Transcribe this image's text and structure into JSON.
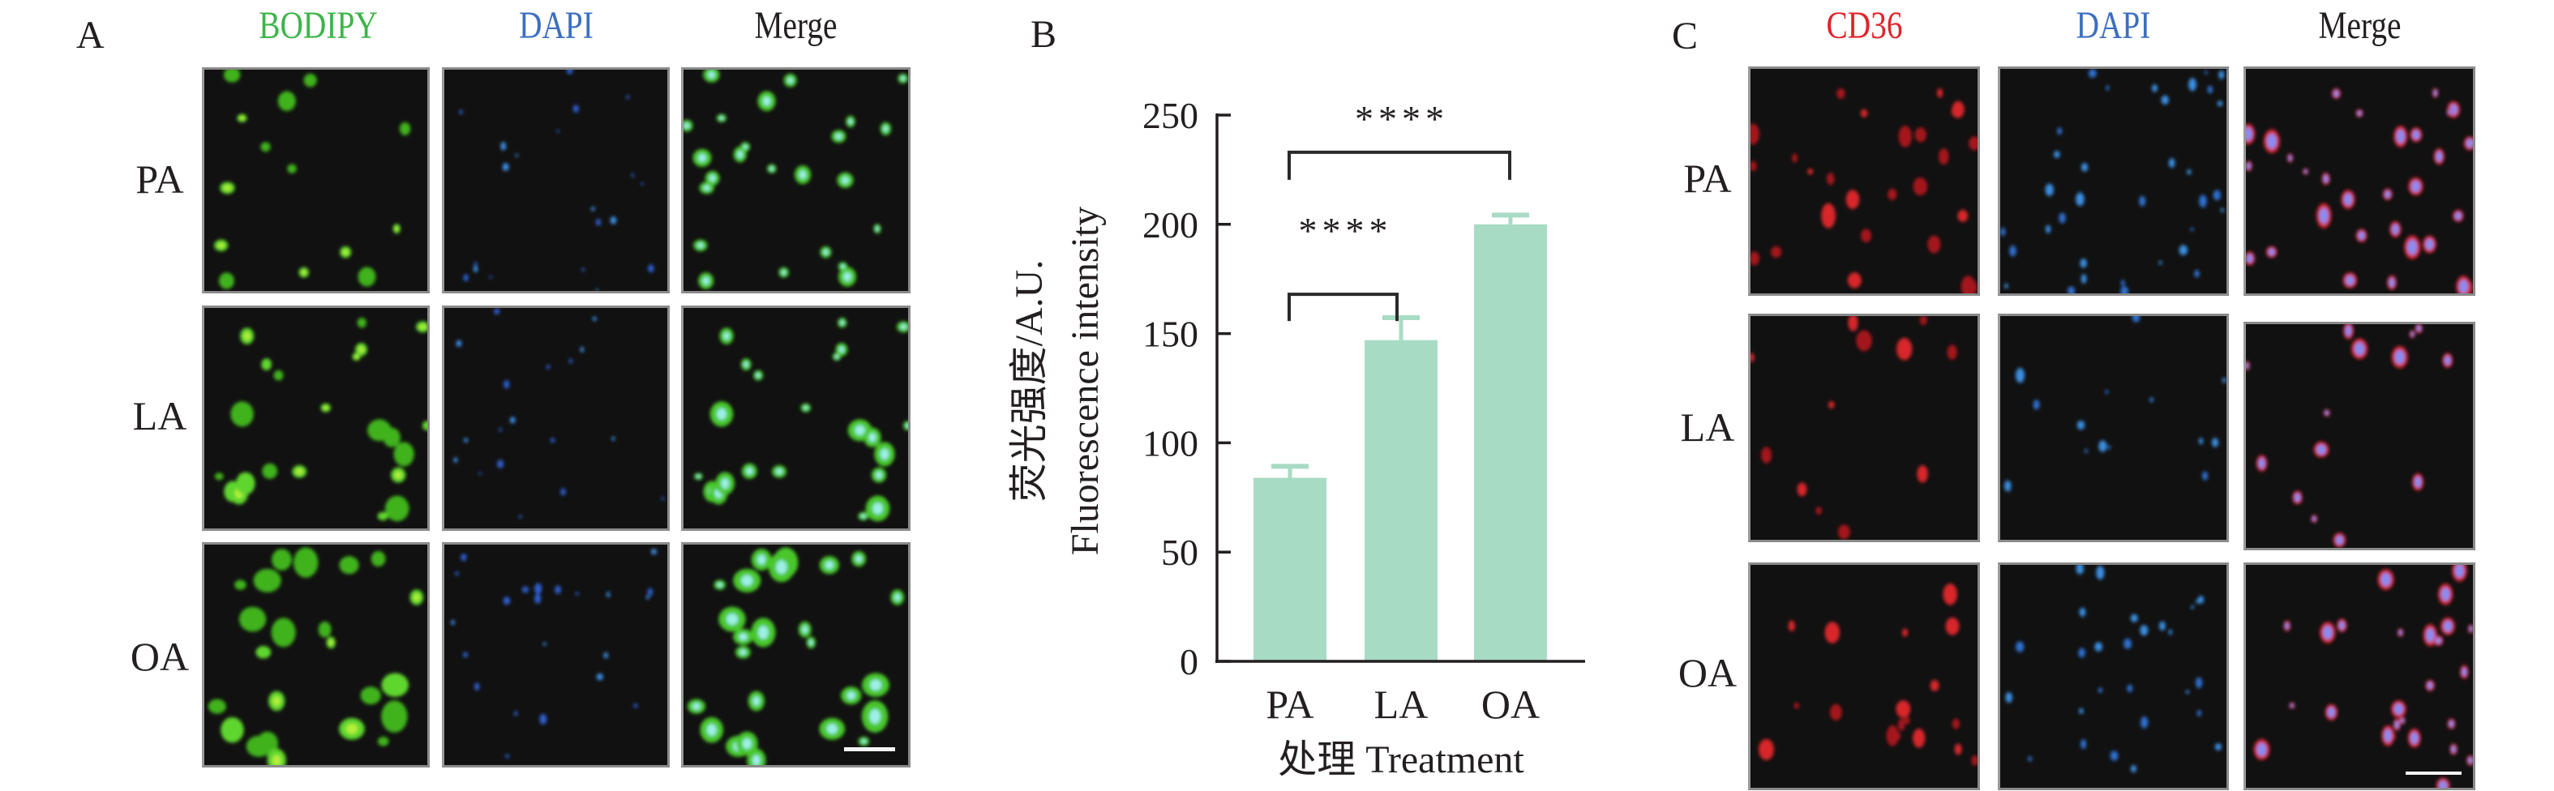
{
  "panel_a": {
    "letter": "A",
    "columns": [
      {
        "label": "BODIPY",
        "color": "#3db54a"
      },
      {
        "label": "DAPI",
        "color": "#3c6fc1"
      },
      {
        "label": "Merge",
        "color": "#231f20"
      }
    ],
    "rows": [
      "PA",
      "LA",
      "OA"
    ],
    "scalebar": true
  },
  "panel_b": {
    "letter": "B"
  },
  "panel_c": {
    "letter": "C",
    "columns": [
      {
        "label": "CD36",
        "color": "#e0242a"
      },
      {
        "label": "DAPI",
        "color": "#3c6fc1"
      },
      {
        "label": "Merge",
        "color": "#231f20"
      }
    ],
    "rows": [
      "PA",
      "LA",
      "OA"
    ],
    "scalebar": true
  },
  "chart_data": {
    "type": "bar",
    "title": "",
    "categories": [
      "PA",
      "LA",
      "OA"
    ],
    "values": [
      84,
      147,
      200
    ],
    "error_upper": [
      90,
      158,
      205
    ],
    "xlabel": "处理 Treatment",
    "ylabel_line1": "荧光强度/A.U.",
    "ylabel_line2": "Fluorescence intensity",
    "ylim": [
      0,
      250
    ],
    "yticks": [
      0,
      50,
      100,
      150,
      200,
      250
    ],
    "grid": false,
    "bar_color": "#a8dbc4",
    "significance": [
      {
        "from": "PA",
        "to": "LA",
        "label": "****",
        "level": 168
      },
      {
        "from": "PA",
        "to": "OA",
        "label": "****",
        "level": 233
      }
    ]
  }
}
